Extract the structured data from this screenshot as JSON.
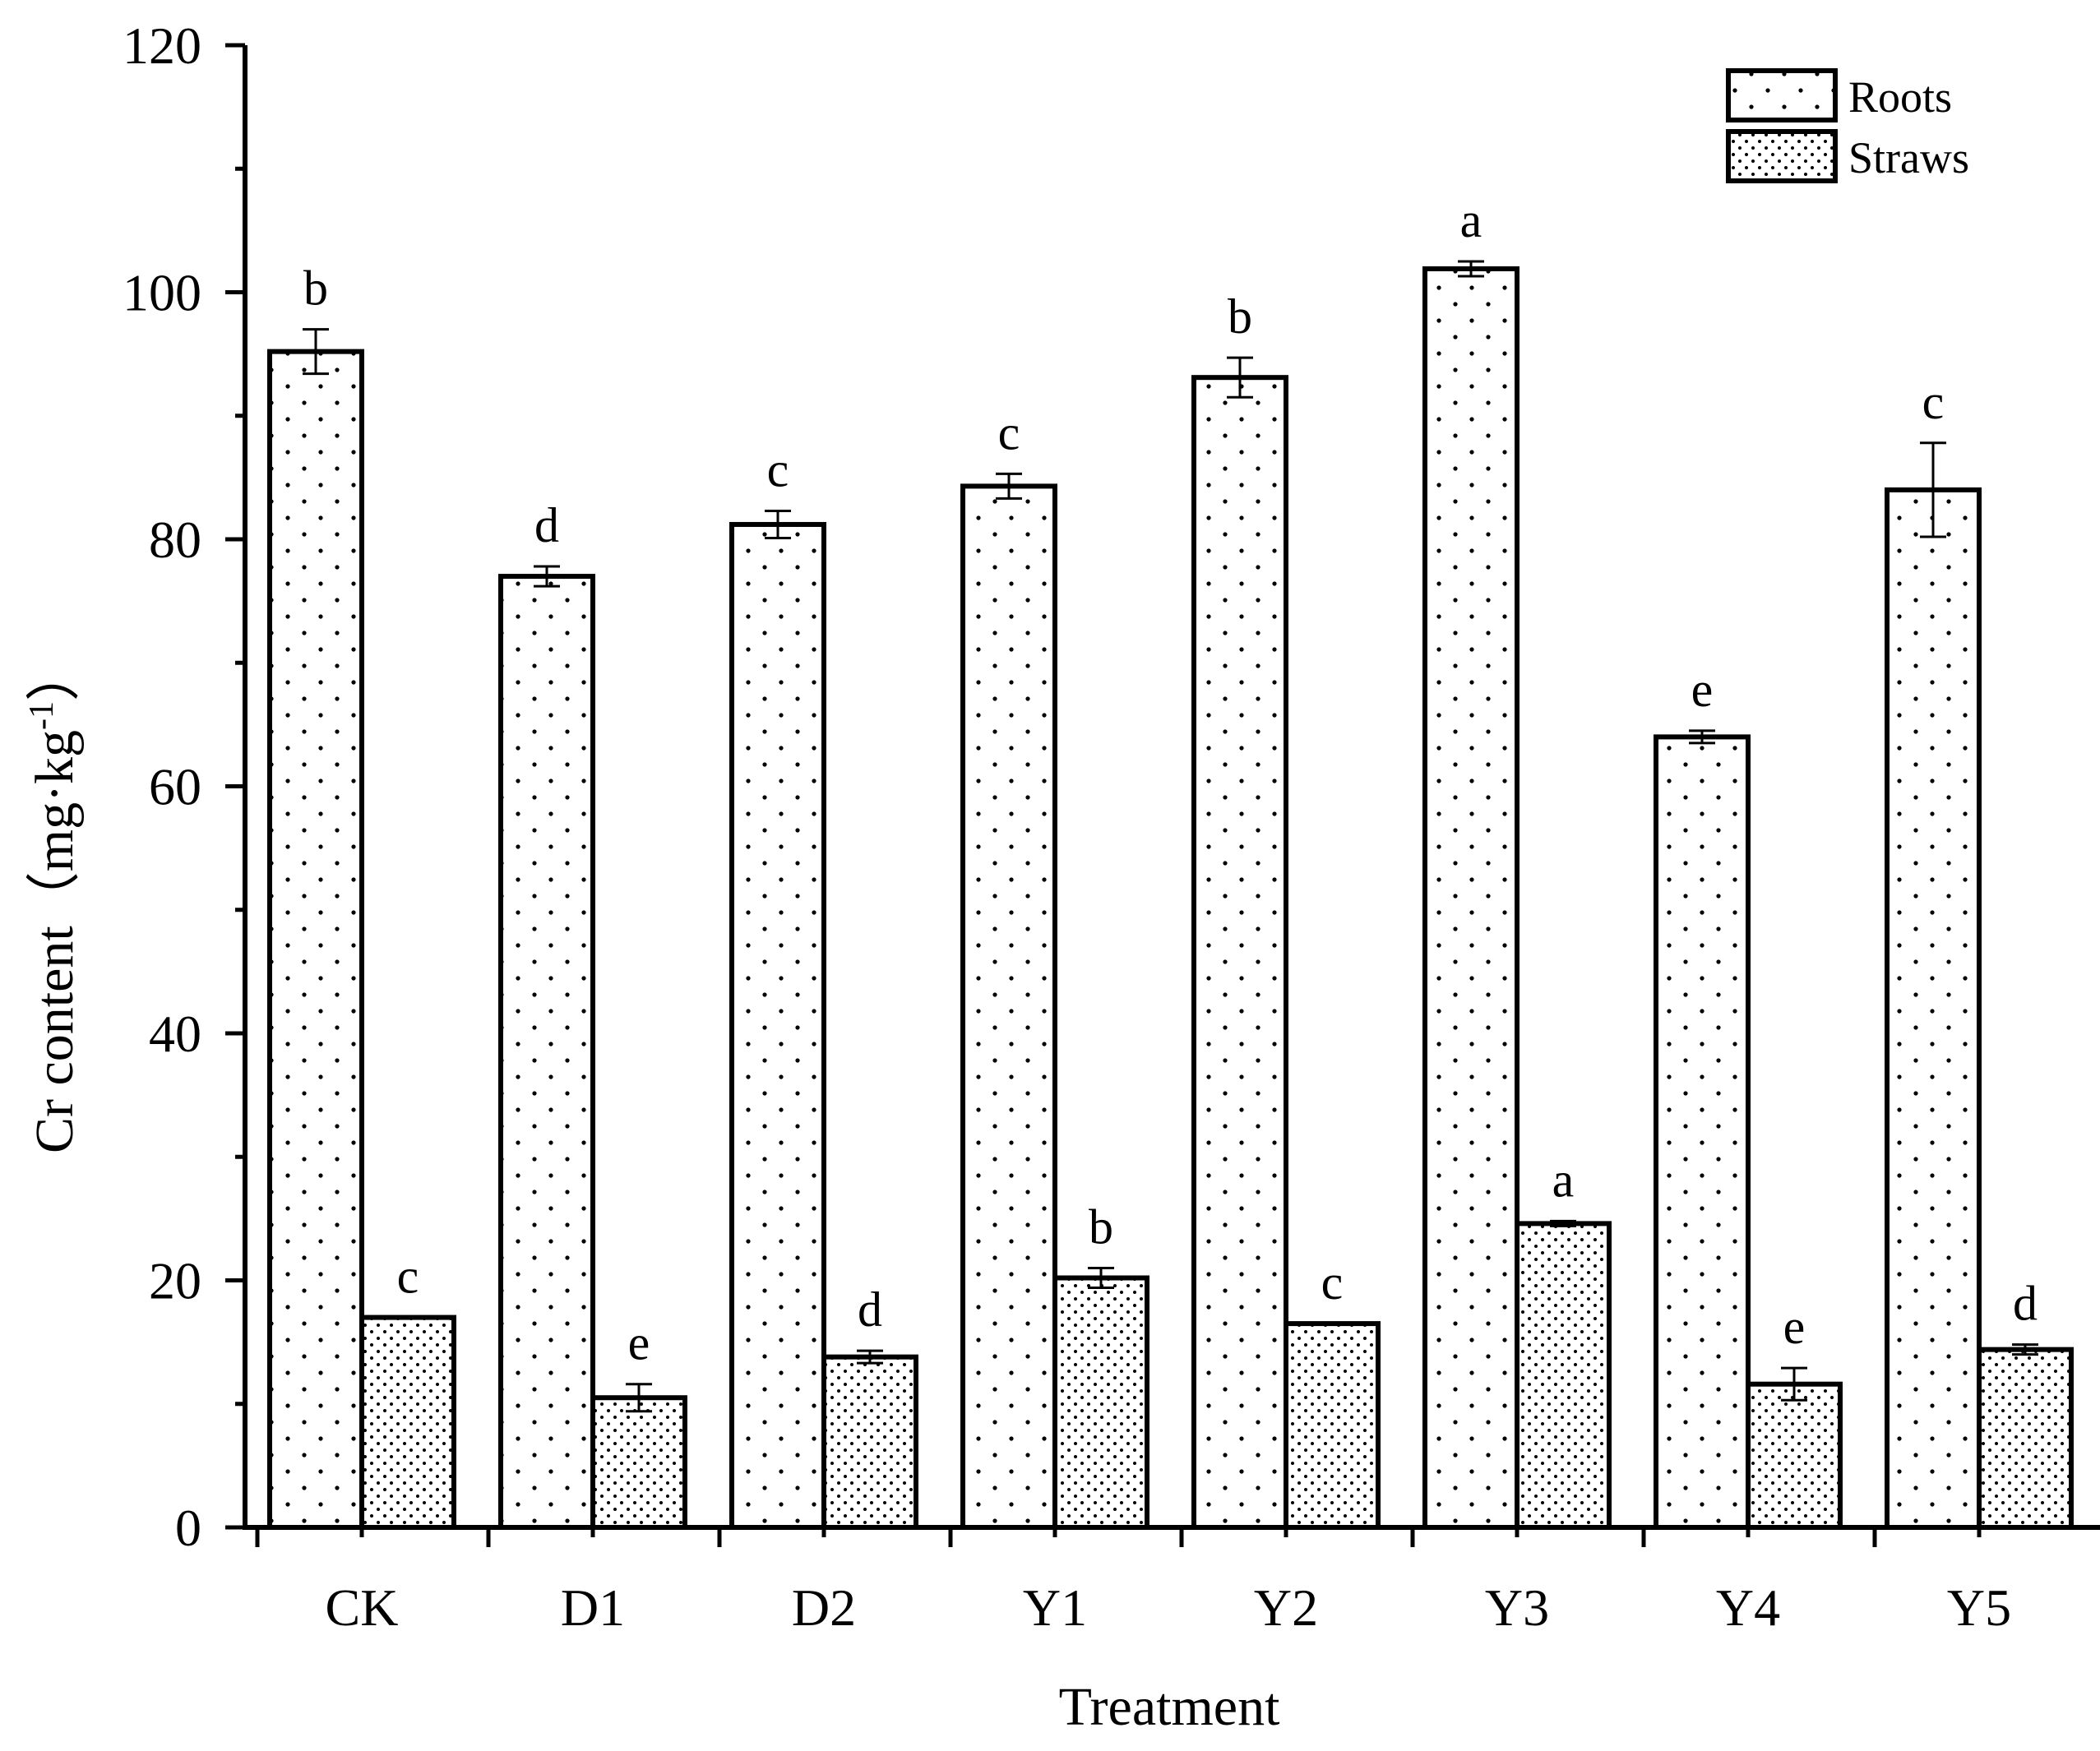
{
  "chart_data": {
    "type": "bar",
    "title": "",
    "xlabel": "Treatment",
    "ylabel": "Cr content（mg·kg",
    "ylabel_superscript": "-1",
    "ylabel_close": "）",
    "ylim": [
      0,
      120
    ],
    "yticks": [
      0,
      20,
      40,
      60,
      80,
      100,
      120
    ],
    "yticks_minor_step": 10,
    "categories": [
      "CK",
      "D1",
      "D2",
      "Y1",
      "Y2",
      "Y3",
      "Y4",
      "Y5"
    ],
    "series": [
      {
        "name": "Roots",
        "pattern": "sparse-dots",
        "values": [
          95.2,
          77.0,
          81.2,
          84.3,
          93.1,
          101.9,
          64.0,
          84.0
        ],
        "errors": [
          1.8,
          0.8,
          1.1,
          1.0,
          1.6,
          0.6,
          0.5,
          3.8
        ],
        "labels": [
          "b",
          "d",
          "c",
          "c",
          "b",
          "a",
          "e",
          "c"
        ]
      },
      {
        "name": "Straws",
        "pattern": "dense-dots",
        "values": [
          17.0,
          10.5,
          13.8,
          20.2,
          16.5,
          24.6,
          11.6,
          14.4
        ],
        "errors": [
          0.0,
          1.1,
          0.5,
          0.8,
          0.0,
          0.2,
          1.3,
          0.4
        ],
        "labels": [
          "c",
          "e",
          "d",
          "b",
          "c",
          "a",
          "e",
          "d"
        ]
      }
    ],
    "legend": {
      "position": "top-right",
      "entries": [
        "Roots",
        "Straws"
      ]
    },
    "grid": false
  }
}
